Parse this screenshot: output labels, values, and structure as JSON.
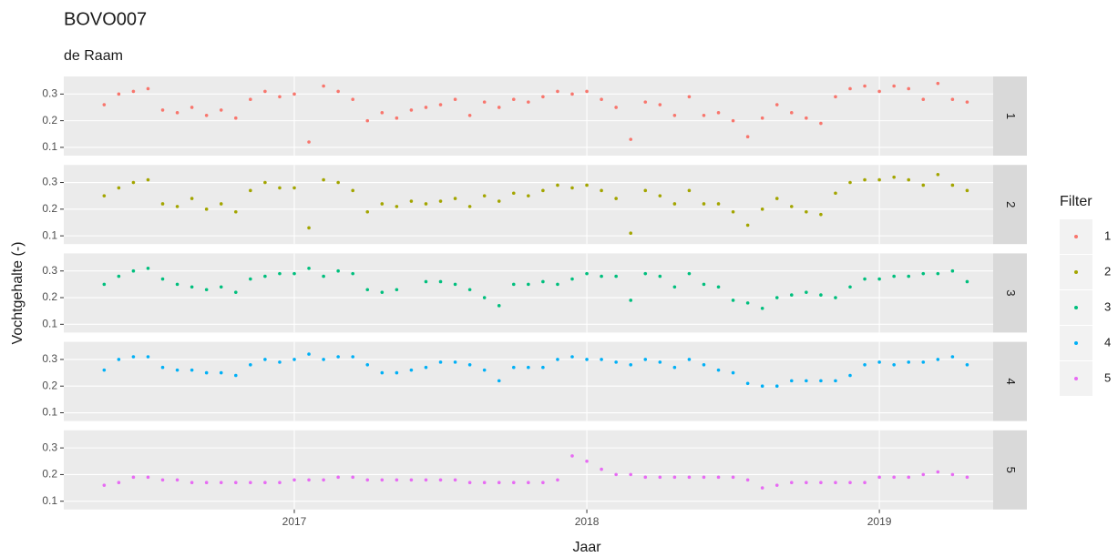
{
  "chart_data": {
    "type": "scatter",
    "title": "BOVO007",
    "subtitle": "de Raam",
    "x_label": "Jaar",
    "y_label": "Vochtgehalte (-)",
    "legend_title": "Filter",
    "legend_position": "right",
    "facet": "series",
    "x": [
      2016.35,
      2016.4,
      2016.45,
      2016.5,
      2016.55,
      2016.6,
      2016.65,
      2016.7,
      2016.75,
      2016.8,
      2016.85,
      2016.9,
      2016.95,
      2017.0,
      2017.05,
      2017.1,
      2017.15,
      2017.2,
      2017.25,
      2017.3,
      2017.35,
      2017.4,
      2017.45,
      2017.5,
      2017.55,
      2017.6,
      2017.65,
      2017.7,
      2017.75,
      2017.8,
      2017.85,
      2017.9,
      2017.95,
      2018.0,
      2018.05,
      2018.1,
      2018.15,
      2018.2,
      2018.25,
      2018.3,
      2018.35,
      2018.4,
      2018.45,
      2018.5,
      2018.55,
      2018.6,
      2018.65,
      2018.7,
      2018.75,
      2018.8,
      2018.85,
      2018.9,
      2018.95,
      2019.0,
      2019.05,
      2019.1,
      2019.15,
      2019.2,
      2019.25,
      2019.3
    ],
    "xlim": [
      2016.212,
      2019.389
    ],
    "xticks": [
      2017,
      2018,
      2019
    ],
    "ylim": [
      0.069,
      0.366
    ],
    "yticks": [
      0.1,
      0.2,
      0.3
    ],
    "series": [
      {
        "name": "1",
        "color": "#F8766D",
        "values": [
          0.26,
          0.3,
          0.31,
          0.32,
          0.24,
          0.23,
          0.25,
          0.22,
          0.24,
          0.21,
          0.28,
          0.31,
          0.29,
          0.3,
          0.12,
          0.33,
          0.31,
          0.28,
          0.2,
          0.23,
          0.21,
          0.24,
          0.25,
          0.26,
          0.28,
          0.22,
          0.27,
          0.25,
          0.28,
          0.27,
          0.29,
          0.31,
          0.3,
          0.31,
          0.28,
          0.25,
          0.13,
          0.27,
          0.26,
          0.22,
          0.29,
          0.22,
          0.23,
          0.2,
          0.14,
          0.21,
          0.26,
          0.23,
          0.21,
          0.19,
          0.29,
          0.32,
          0.33,
          0.31,
          0.33,
          0.32,
          0.28,
          0.34,
          0.28,
          0.27
        ]
      },
      {
        "name": "2",
        "color": "#A3A500",
        "values": [
          0.25,
          0.28,
          0.3,
          0.31,
          0.22,
          0.21,
          0.24,
          0.2,
          0.22,
          0.19,
          0.27,
          0.3,
          0.28,
          0.28,
          0.13,
          0.31,
          0.3,
          0.27,
          0.19,
          0.22,
          0.21,
          0.23,
          0.22,
          0.23,
          0.24,
          0.21,
          0.25,
          0.23,
          0.26,
          0.25,
          0.27,
          0.29,
          0.28,
          0.29,
          0.27,
          0.24,
          0.11,
          0.27,
          0.25,
          0.22,
          0.27,
          0.22,
          0.22,
          0.19,
          0.14,
          0.2,
          0.24,
          0.21,
          0.19,
          0.18,
          0.26,
          0.3,
          0.31,
          0.31,
          0.32,
          0.31,
          0.29,
          0.33,
          0.29,
          0.27
        ]
      },
      {
        "name": "3",
        "color": "#00BF7D",
        "values": [
          0.25,
          0.28,
          0.3,
          0.31,
          0.27,
          0.25,
          0.24,
          0.23,
          0.24,
          0.22,
          0.27,
          0.28,
          0.29,
          0.29,
          0.31,
          0.28,
          0.3,
          0.29,
          0.23,
          0.22,
          0.23,
          null,
          0.26,
          0.26,
          0.25,
          0.23,
          0.2,
          0.17,
          0.25,
          0.25,
          0.26,
          0.25,
          0.27,
          0.29,
          0.28,
          0.28,
          0.19,
          0.29,
          0.28,
          0.24,
          0.29,
          0.25,
          0.24,
          0.19,
          0.18,
          0.16,
          0.2,
          0.21,
          0.22,
          0.21,
          0.2,
          0.24,
          0.27,
          0.27,
          0.28,
          0.28,
          0.29,
          0.29,
          0.3,
          0.26
        ]
      },
      {
        "name": "4",
        "color": "#00B0F6",
        "values": [
          0.26,
          0.3,
          0.31,
          0.31,
          0.27,
          0.26,
          0.26,
          0.25,
          0.25,
          0.24,
          0.28,
          0.3,
          0.29,
          0.3,
          0.32,
          0.3,
          0.31,
          0.31,
          0.28,
          0.25,
          0.25,
          0.26,
          0.27,
          0.29,
          0.29,
          0.28,
          0.26,
          0.22,
          0.27,
          0.27,
          0.27,
          0.3,
          0.31,
          0.3,
          0.3,
          0.29,
          0.28,
          0.3,
          0.29,
          0.27,
          0.3,
          0.28,
          0.26,
          0.25,
          0.21,
          0.2,
          0.2,
          0.22,
          0.22,
          0.22,
          0.22,
          0.24,
          0.28,
          0.29,
          0.28,
          0.29,
          0.29,
          0.3,
          0.31,
          0.28
        ]
      },
      {
        "name": "5",
        "color": "#E76BF3",
        "values": [
          0.16,
          0.17,
          0.19,
          0.19,
          0.18,
          0.18,
          0.17,
          0.17,
          0.17,
          0.17,
          0.17,
          0.17,
          0.17,
          0.18,
          0.18,
          0.18,
          0.19,
          0.19,
          0.18,
          0.18,
          0.18,
          0.18,
          0.18,
          0.18,
          0.18,
          0.17,
          0.17,
          0.17,
          0.17,
          0.17,
          0.17,
          0.18,
          0.27,
          0.25,
          0.22,
          0.2,
          0.2,
          0.19,
          0.19,
          0.19,
          0.19,
          0.19,
          0.19,
          0.19,
          0.18,
          0.15,
          0.16,
          0.17,
          0.17,
          0.17,
          0.17,
          0.17,
          0.17,
          0.19,
          0.19,
          0.19,
          0.2,
          0.21,
          0.2,
          0.19
        ]
      }
    ]
  }
}
